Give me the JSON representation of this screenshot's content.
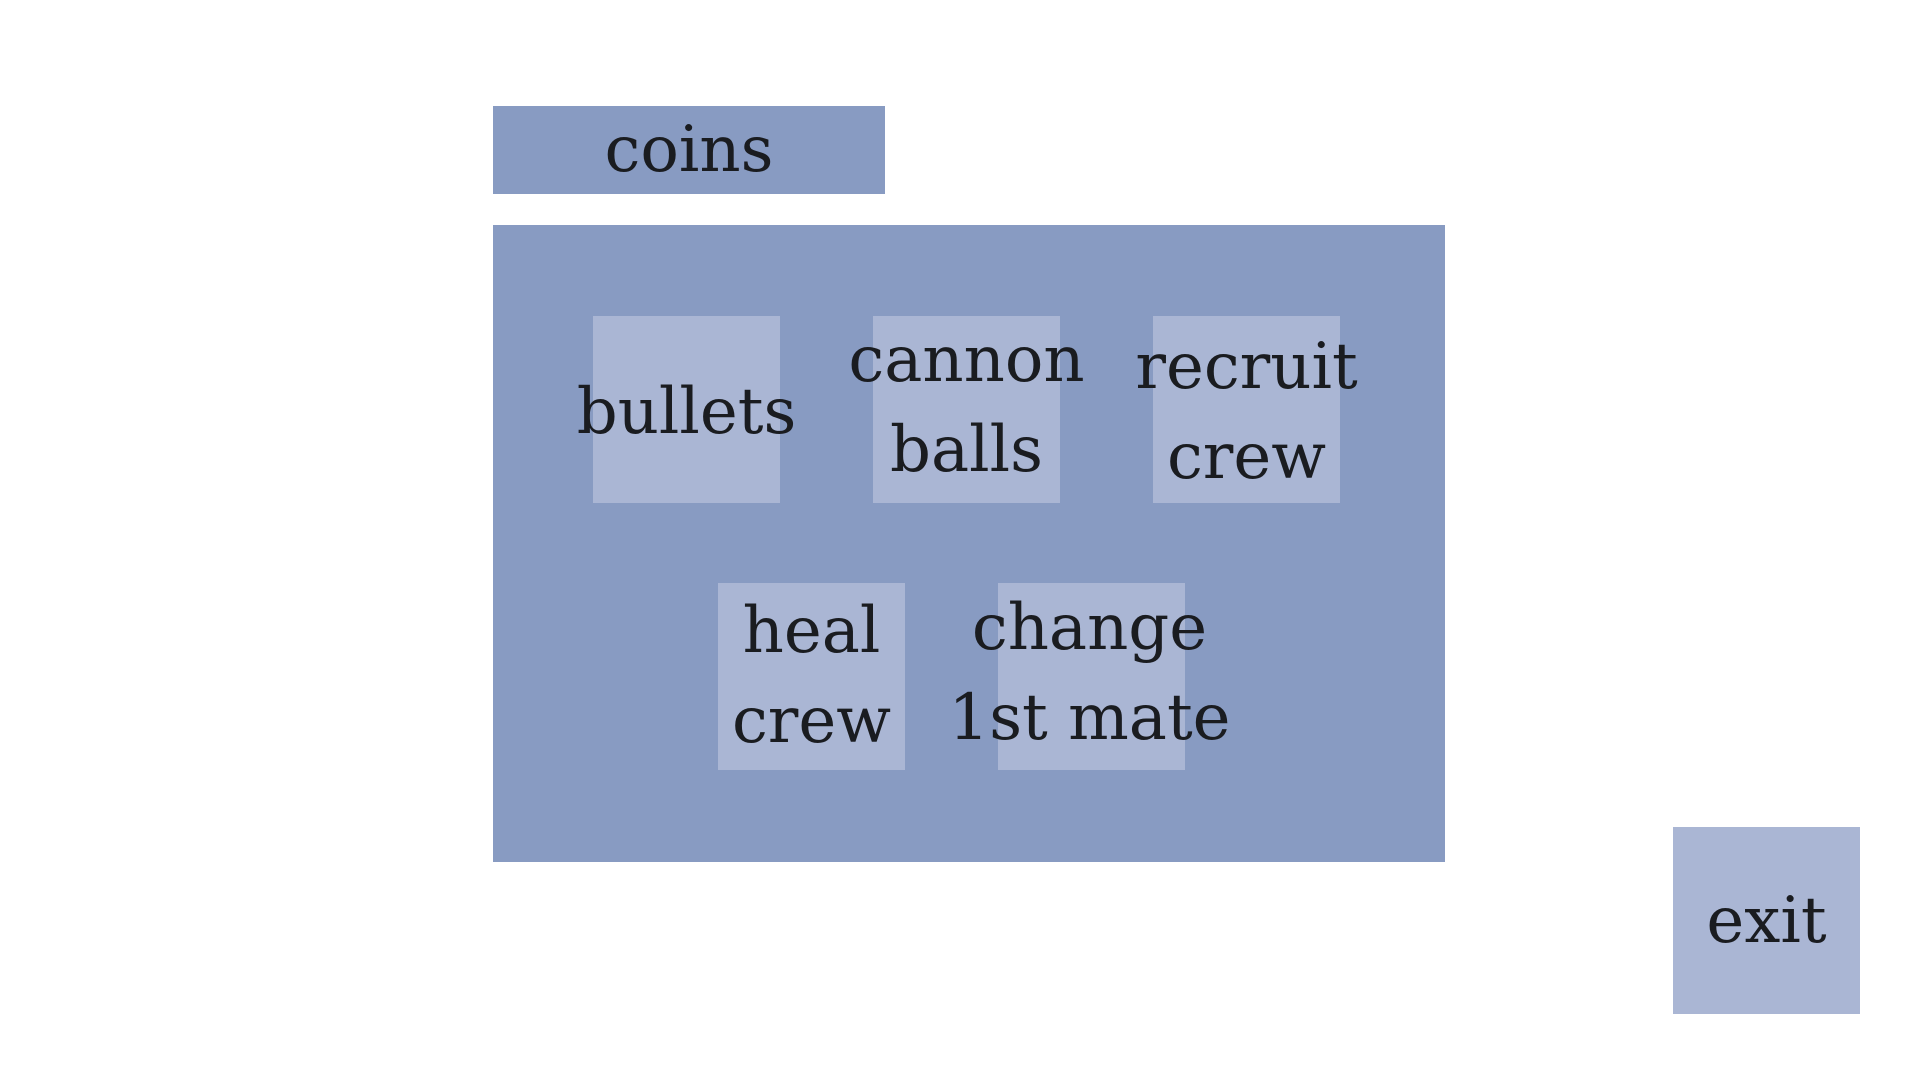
{
  "hud": {
    "coins_label": "coins"
  },
  "shop": {
    "items": [
      {
        "label": "bullets"
      },
      {
        "label": "cannon\nballs"
      },
      {
        "label": "recruit\ncrew"
      },
      {
        "label": "heal\ncrew"
      },
      {
        "label": "change\n1st mate"
      }
    ]
  },
  "controls": {
    "exit_label": "exit"
  },
  "colors": {
    "panel": "#889bc2",
    "button": "#aab6d4",
    "text": "#1a1c20",
    "background": "#ffffff"
  }
}
